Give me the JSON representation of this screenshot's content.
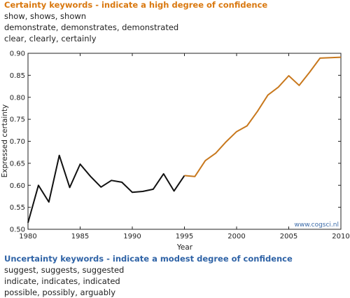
{
  "top_legend": {
    "heading": "Certainty keywords - indicate a high degree of confidence",
    "lines": [
      "show, shows, shown",
      "demonstrate, demonstrates, demonstrated",
      "clear, clearly, certainly"
    ]
  },
  "bottom_legend": {
    "heading": "Uncertainty keywords - indicate a modest degree of confidence",
    "lines": [
      "suggest, suggests, suggested",
      "indicate, indicates, indicated",
      "possible, possibly, arguably"
    ]
  },
  "watermark": "www.cogsci.nl",
  "colors": {
    "certainty": "#d9780f",
    "uncertainty": "#2f63a6",
    "early_line": "#111111",
    "late_line": "#c8781d"
  },
  "chart_data": {
    "type": "line",
    "title": "",
    "xlabel": "Year",
    "ylabel": "Expressed certainty",
    "xlim": [
      1980,
      2010
    ],
    "ylim": [
      0.5,
      0.9
    ],
    "xticks": [
      1980,
      1985,
      1990,
      1995,
      2000,
      2005,
      2010
    ],
    "yticks": [
      "0.50",
      "0.55",
      "0.60",
      "0.65",
      "0.70",
      "0.75",
      "0.80",
      "0.85",
      "0.90"
    ],
    "grid": false,
    "x": [
      1980,
      1981,
      1982,
      1983,
      1984,
      1985,
      1986,
      1987,
      1988,
      1989,
      1990,
      1991,
      1992,
      1993,
      1994,
      1995,
      1996,
      1997,
      1998,
      1999,
      2000,
      2001,
      2002,
      2003,
      2004,
      2005,
      2006,
      2007,
      2008,
      2009,
      2010
    ],
    "series": [
      {
        "values": [
          0.515,
          0.6,
          0.562,
          0.668,
          0.595,
          0.648,
          0.62,
          0.596,
          0.611,
          0.607,
          0.584,
          0.586,
          0.591,
          0.626,
          0.587,
          0.622,
          0.62,
          0.656,
          0.673,
          0.699,
          0.722,
          0.735,
          0.768,
          0.805,
          0.823,
          0.849,
          0.827,
          0.857,
          0.889,
          0.89,
          0.891
        ],
        "color_split_year": 1995
      }
    ]
  }
}
